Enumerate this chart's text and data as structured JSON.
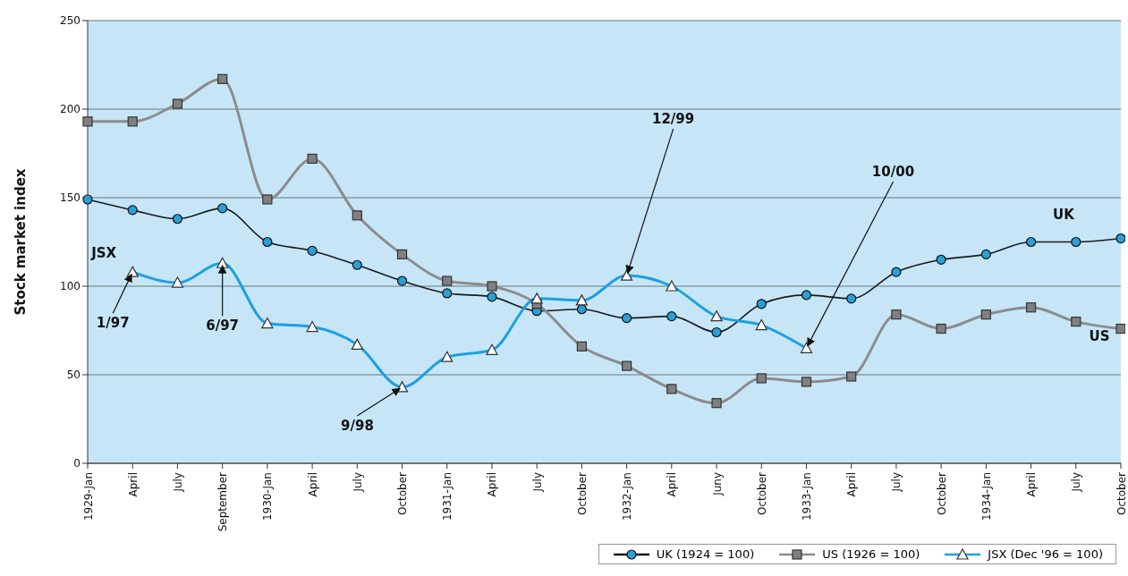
{
  "chart_data": {
    "type": "line",
    "ylabel": "Stock market index",
    "categories": [
      "1929-Jan",
      "April",
      "July",
      "September",
      "1930-Jan",
      "April",
      "July",
      "October",
      "1931-Jan",
      "April",
      "July",
      "October",
      "1932-Jan",
      "April",
      "Juny",
      "October",
      "1933-Jan",
      "April",
      "July",
      "October",
      "1934-Jan",
      "April",
      "July",
      "October"
    ],
    "series": [
      {
        "name": "UK (1924 = 100)",
        "color": "#1a1a1a",
        "marker": "circle",
        "values": [
          149,
          143,
          138,
          144,
          125,
          120,
          112,
          103,
          96,
          94,
          86,
          87,
          82,
          83,
          74,
          90,
          95,
          93,
          108,
          115,
          118,
          125,
          125,
          127
        ]
      },
      {
        "name": "US (1926 = 100)",
        "color": "#8c8c8c",
        "marker": "square",
        "values": [
          193,
          193,
          203,
          217,
          149,
          172,
          140,
          118,
          103,
          100,
          90,
          66,
          55,
          42,
          34,
          48,
          46,
          49,
          84,
          76,
          84,
          88,
          80,
          76
        ]
      },
      {
        "name": "JSX (Dec '96 = 100)",
        "color": "#1e9fe0",
        "marker": "triangle",
        "values": [
          null,
          108,
          102,
          113,
          79,
          77,
          67,
          43,
          60,
          64,
          93,
          92,
          106,
          100,
          83,
          78,
          65,
          null,
          null,
          null,
          null,
          null,
          null,
          null
        ]
      }
    ],
    "ylim": [
      0,
      250
    ],
    "yticks": [
      0,
      50,
      100,
      150,
      200,
      250
    ],
    "grid": "y",
    "legend": "bottom right",
    "annotations": [
      {
        "text": "JSX",
        "x": "April",
        "y": 108
      },
      {
        "text": "1/97",
        "x": "April",
        "y": 108
      },
      {
        "text": "6/97",
        "x": "September",
        "y": 113
      },
      {
        "text": "9/98",
        "x": "October",
        "y": 43
      },
      {
        "text": "12/99",
        "x": "1932-Jan",
        "y": 106
      },
      {
        "text": "10/00",
        "x": "1933-Jan",
        "y": 65
      },
      "UK",
      "US"
    ]
  }
}
